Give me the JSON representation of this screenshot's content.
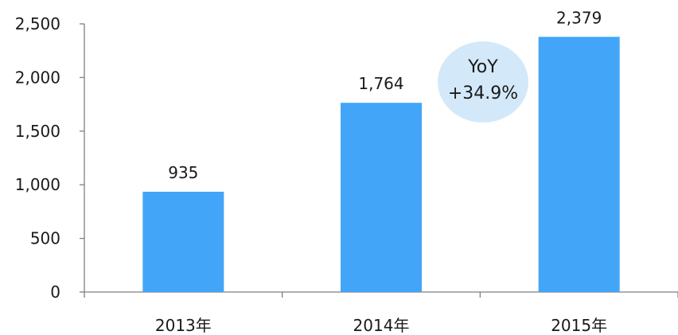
{
  "chart_data": {
    "type": "bar",
    "categories": [
      "2013年",
      "2014年",
      "2015年"
    ],
    "values": [
      935,
      1764,
      2379
    ],
    "value_labels": [
      "935",
      "1,764",
      "2,379"
    ],
    "y_ticks": [
      0,
      500,
      1000,
      1500,
      2000,
      2500
    ],
    "y_tick_labels": [
      "0",
      "500",
      "1,000",
      "1,500",
      "2,000",
      "2,500"
    ],
    "ylim": [
      0,
      2500
    ],
    "title": "",
    "xlabel": "",
    "ylabel": "",
    "grid": false,
    "bar_color": "#42a5f8",
    "axis_color": "#808080",
    "annotation": {
      "line1": "YoY",
      "line2": "+34.9%",
      "background": "#d3e9f9"
    }
  }
}
